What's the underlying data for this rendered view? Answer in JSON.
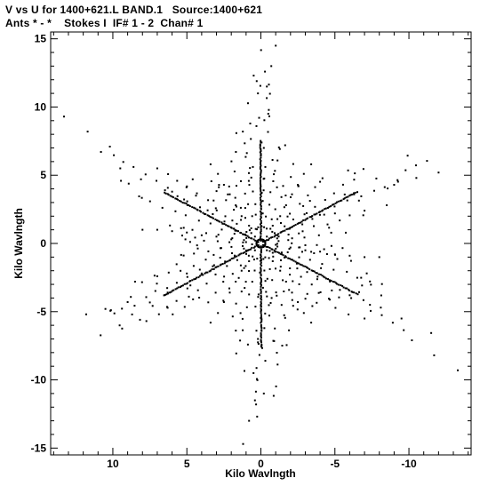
{
  "header": {
    "line1": "V vs U for 1400+621.L BAND.1   Source:1400+621",
    "line2": "Ants * - *    Stokes I  IF# 1 - 2  Chan# 1"
  },
  "chart_data": {
    "type": "scatter",
    "title": "V vs U for 1400+621.L BAND.1   Source:1400+621",
    "subtitle": "Ants * - *    Stokes I  IF# 1 - 2  Chan# 1",
    "xlabel": "Kilo Wavlngth",
    "ylabel": "Kilo Wavlngth",
    "xlim": [
      14.2,
      -14.2
    ],
    "ylim": [
      -15.5,
      15.5
    ],
    "x_inverted": true,
    "xticks": [
      10,
      5,
      0,
      -5,
      -10
    ],
    "xtick_labels": [
      "10",
      "5",
      "0",
      "-5",
      "-10"
    ],
    "yticks": [
      15,
      10,
      5,
      0,
      -5,
      -10,
      -15
    ],
    "ytick_labels": [
      "15",
      "10",
      "5",
      "0",
      "-5",
      "-10",
      "-15"
    ],
    "grid": false,
    "series": [
      {
        "marker": "dot",
        "color": "#000000",
        "arms_hexagonal_star": {
          "arm_angles_deg": [
            90,
            150,
            210,
            270,
            330,
            30
          ],
          "arm_tip_radius": 14.5,
          "arm_base_radius": 5.2
        },
        "points": [
          [
            0.0,
            0.2
          ],
          [
            -0.4,
            0.5
          ],
          [
            -0.8,
            1.3
          ],
          [
            -1.3,
            2.0
          ],
          [
            -1.7,
            2.8
          ],
          [
            -2.1,
            3.6
          ],
          [
            -2.5,
            4.3
          ],
          [
            -2.9,
            5.1
          ],
          [
            -3.4,
            5.8
          ],
          [
            0.4,
            -0.5
          ],
          [
            0.8,
            -1.3
          ],
          [
            1.3,
            -2.0
          ],
          [
            1.7,
            -2.8
          ],
          [
            2.1,
            -3.6
          ],
          [
            2.5,
            -4.3
          ],
          [
            2.9,
            -5.1
          ],
          [
            3.4,
            -5.8
          ],
          [
            0.4,
            0.5
          ],
          [
            0.8,
            1.3
          ],
          [
            1.3,
            2.0
          ],
          [
            1.7,
            2.8
          ],
          [
            2.1,
            3.6
          ],
          [
            2.5,
            4.3
          ],
          [
            2.9,
            5.1
          ],
          [
            3.4,
            5.8
          ],
          [
            -0.4,
            -0.5
          ],
          [
            -0.8,
            -1.3
          ],
          [
            -1.3,
            -2.0
          ],
          [
            -1.7,
            -2.8
          ],
          [
            -2.1,
            -3.6
          ],
          [
            -2.5,
            -4.3
          ],
          [
            -2.9,
            -5.1
          ],
          [
            -3.4,
            -5.8
          ],
          [
            1.0,
            0.1
          ],
          [
            2.0,
            0.3
          ],
          [
            3.0,
            0.5
          ],
          [
            4.0,
            0.6
          ],
          [
            5.0,
            0.8
          ],
          [
            6.0,
            0.9
          ],
          [
            7.0,
            1.0
          ],
          [
            8.0,
            1.0
          ],
          [
            -1.0,
            -0.1
          ],
          [
            -2.0,
            -0.3
          ],
          [
            -3.0,
            -0.5
          ],
          [
            -4.0,
            -0.6
          ],
          [
            -5.0,
            -0.8
          ],
          [
            -6.0,
            -0.9
          ],
          [
            -7.0,
            -1.0
          ],
          [
            -8.0,
            -1.0
          ],
          [
            -1.0,
            14.5
          ],
          [
            -0.7,
            13.0
          ],
          [
            -0.4,
            11.5
          ],
          [
            0.2,
            11.0
          ],
          [
            -0.5,
            9.5
          ],
          [
            0.3,
            8.6
          ],
          [
            -0.2,
            7.0
          ],
          [
            1.2,
            -14.7
          ],
          [
            0.8,
            -13.0
          ],
          [
            0.4,
            -11.5
          ],
          [
            -0.2,
            -11.0
          ],
          [
            0.5,
            -9.5
          ],
          [
            -0.3,
            -8.6
          ],
          [
            0.2,
            -7.0
          ],
          [
            13.3,
            9.3
          ],
          [
            11.7,
            8.2
          ],
          [
            10.2,
            7.1
          ],
          [
            9.5,
            5.5
          ],
          [
            8.1,
            4.7
          ],
          [
            7.0,
            5.5
          ],
          [
            6.0,
            3.8
          ],
          [
            -13.3,
            -9.3
          ],
          [
            -11.7,
            -8.2
          ],
          [
            -10.2,
            -7.1
          ],
          [
            -9.5,
            -5.5
          ],
          [
            -8.1,
            -4.7
          ],
          [
            -7.0,
            -5.5
          ],
          [
            -6.0,
            -3.8
          ],
          [
            11.8,
            -5.2
          ],
          [
            10.5,
            -4.8
          ],
          [
            9.0,
            -4.3
          ],
          [
            8.5,
            -2.8
          ],
          [
            7.0,
            -2.4
          ],
          [
            6.3,
            -3.6
          ],
          [
            5.0,
            -2.2
          ],
          [
            -12.0,
            5.2
          ],
          [
            -10.5,
            4.8
          ],
          [
            -9.0,
            4.3
          ],
          [
            -8.5,
            2.8
          ],
          [
            -7.0,
            2.4
          ],
          [
            -6.3,
            3.6
          ],
          [
            -5.0,
            2.2
          ]
        ]
      }
    ]
  }
}
